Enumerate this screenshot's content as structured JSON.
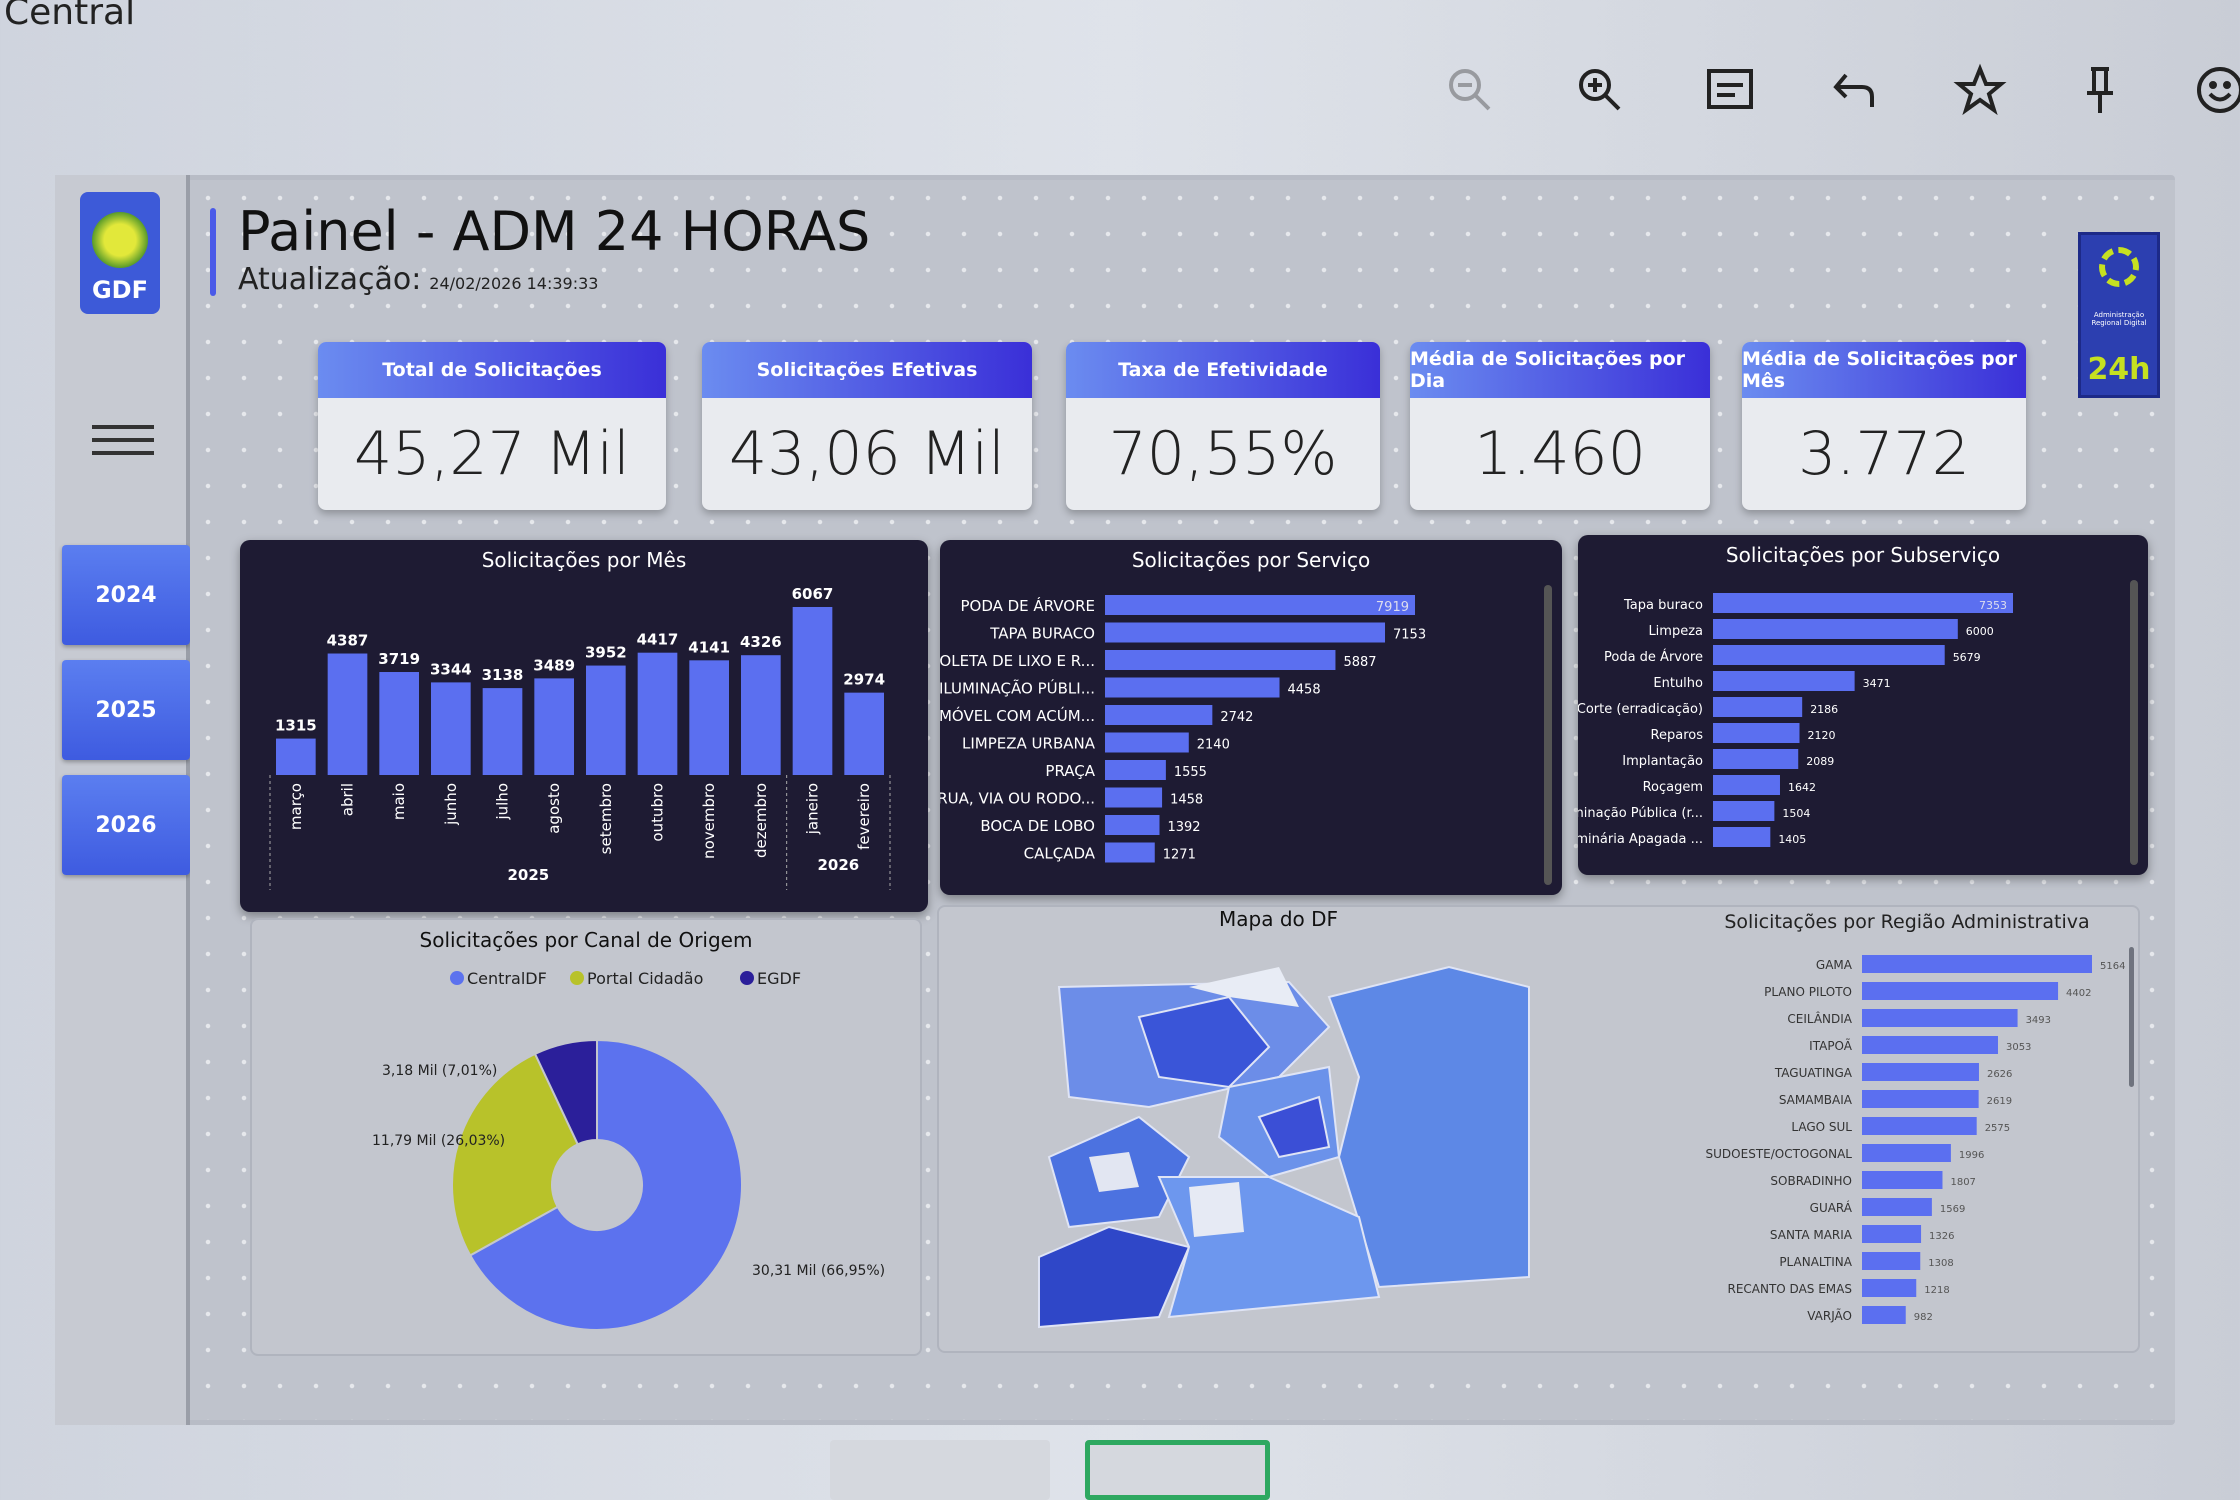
{
  "app": {
    "title": "Central"
  },
  "toolbar": {
    "icons": [
      "zoom-out-icon",
      "zoom-in-icon",
      "comment-icon",
      "undo-icon",
      "star-icon",
      "pin-icon",
      "smiley-icon"
    ]
  },
  "sidebar": {
    "logo_text": "GDF",
    "years": [
      "2024",
      "2025",
      "2026"
    ]
  },
  "header": {
    "title": "Painel - ADM 24 HORAS",
    "update_label": "Atualização:",
    "update_value": "24/02/2026 14:39:33",
    "logo_text": "24h",
    "logo_caption": "Administração Regional Digital"
  },
  "kpis": [
    {
      "label": "Total de Solicitações",
      "value": "45,27 Mil"
    },
    {
      "label": "Solicitações Efetivas",
      "value": "43,06 Mil"
    },
    {
      "label": "Taxa de Efetividade",
      "value": "70,55%"
    },
    {
      "label": "Média de Solicitações por Dia",
      "value": "1.460"
    },
    {
      "label": "Média de Solicitações por Mês",
      "value": "3.772"
    }
  ],
  "colors": {
    "bar": "#5b6ff0",
    "dark_panel": "#1e1b33",
    "centraldf": "#5c72ee",
    "portal": "#b8c22a",
    "egdf": "#2b1f9a"
  },
  "chart_data": [
    {
      "type": "bar",
      "title": "Solicitações por Mês",
      "categories": [
        "março",
        "abril",
        "maio",
        "junho",
        "julho",
        "agosto",
        "setembro",
        "outubro",
        "novembro",
        "dezembro",
        "janeiro",
        "fevereiro"
      ],
      "years": [
        {
          "label": "2025",
          "count": 10
        },
        {
          "label": "2026",
          "count": 2
        }
      ],
      "values": [
        1315,
        4387,
        3719,
        3344,
        3138,
        3489,
        3952,
        4417,
        4141,
        4326,
        6067,
        2974
      ]
    },
    {
      "type": "bar",
      "orientation": "horizontal",
      "title": "Solicitações por Serviço",
      "categories": [
        "PODA DE ÁRVORE",
        "TAPA BURACO",
        "COLETA DE LIXO E R...",
        "ILUMINAÇÃO PÚBLI...",
        "IMÓVEL COM ACÚM...",
        "LIMPEZA URBANA",
        "PRAÇA",
        "RUA, VIA OU RODO...",
        "BOCA DE LOBO",
        "CALÇADA"
      ],
      "values": [
        7919,
        7153,
        5887,
        4458,
        2742,
        2140,
        1555,
        1458,
        1392,
        1271
      ]
    },
    {
      "type": "bar",
      "orientation": "horizontal",
      "title": "Solicitações por Subserviço",
      "categories": [
        "Tapa buraco",
        "Limpeza",
        "Poda de Árvore",
        "Entulho",
        "Corte (erradicação)",
        "Reparos",
        "Implantação",
        "Roçagem",
        "Iluminação Pública (r...",
        "Luminária Apagada ..."
      ],
      "values": [
        7353,
        6000,
        5679,
        3471,
        2186,
        2120,
        2089,
        1642,
        1504,
        1405
      ]
    },
    {
      "type": "pie",
      "title": "Solicitações por Canal de Origem",
      "legend_position": "top",
      "series": [
        {
          "name": "CentralDF",
          "value": 30.31,
          "label": "30,31 Mil (66,95%)"
        },
        {
          "name": "Portal Cidadão",
          "value": 11.79,
          "label": "11,79 Mil (26,03%)"
        },
        {
          "name": "EGDF",
          "value": 3.18,
          "label": "3,18 Mil (7,01%)"
        }
      ]
    },
    {
      "type": "bar",
      "orientation": "horizontal",
      "title": "Solicitações por Região Administrativa",
      "categories": [
        "GAMA",
        "PLANO PILOTO",
        "CEILÂNDIA",
        "ITAPOÃ",
        "TAGUATINGA",
        "SAMAMBAIA",
        "LAGO SUL",
        "SUDOESTE/OCTOGONAL",
        "SOBRADINHO",
        "GUARÁ",
        "SANTA MARIA",
        "PLANALTINA",
        "RECANTO DAS EMAS",
        "VARJÃO"
      ],
      "values": [
        5164,
        4402,
        3493,
        3053,
        2626,
        2619,
        2575,
        1996,
        1807,
        1569,
        1326,
        1308,
        1218,
        982
      ]
    }
  ],
  "map": {
    "title": "Mapa do DF"
  }
}
